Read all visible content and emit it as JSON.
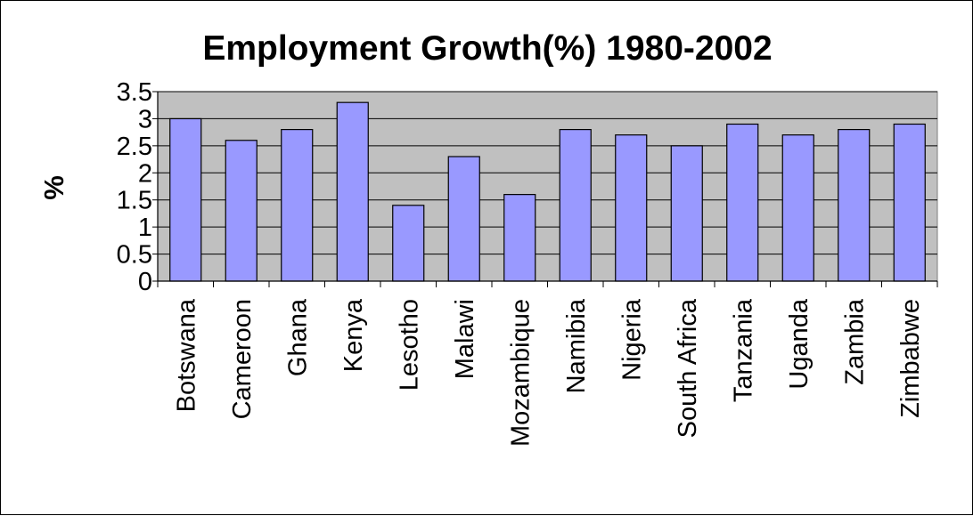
{
  "chart_data": {
    "type": "bar",
    "title": "Employment Growth(%) 1980-2002",
    "xlabel": "",
    "ylabel": "%",
    "ylim": [
      0,
      3.5
    ],
    "yticks": [
      "0",
      "0.5",
      "1",
      "1.5",
      "2",
      "2.5",
      "3",
      "3.5"
    ],
    "grid": true,
    "legend": "none",
    "categories": [
      "Botswana",
      "Cameroon",
      "Ghana",
      "Kenya",
      "Lesotho",
      "Malawi",
      "Mozambique",
      "Namibia",
      "Nigeria",
      "South Africa",
      "Tanzania",
      "Uganda",
      "Zambia",
      "Zimbabwe"
    ],
    "values": [
      3.0,
      2.6,
      2.8,
      3.3,
      1.4,
      2.3,
      1.6,
      2.8,
      2.7,
      2.5,
      2.9,
      2.7,
      2.8,
      2.9
    ],
    "colors": {
      "bar_fill": "#9999FF",
      "plot_background": "#C0C0C0",
      "gridline": "#000000",
      "bar_stroke": "#000000"
    }
  }
}
